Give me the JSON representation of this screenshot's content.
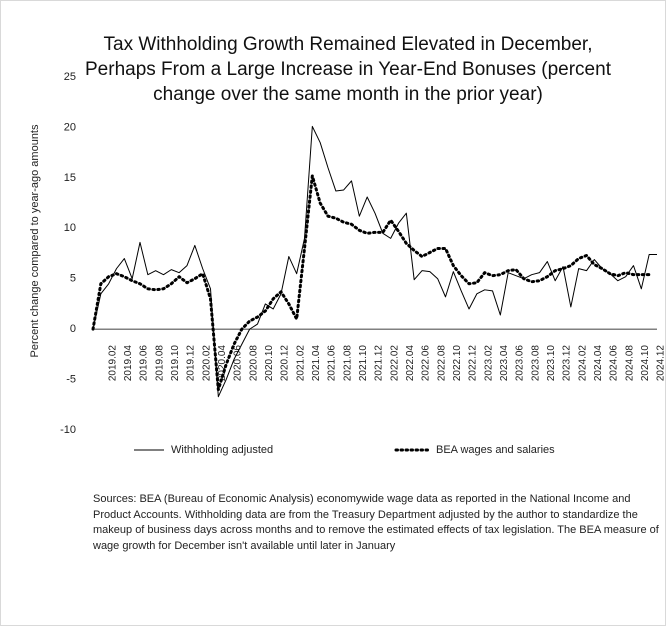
{
  "chart_data": {
    "type": "line",
    "title": [
      "Tax Withholding Growth Remained Elevated in December,",
      "Perhaps From a Large Increase in Year-End  Bonuses (percent",
      "change over the same month in the prior year)"
    ],
    "y_label": "Percent change compared to year-ago amounts",
    "note": "Sources:  BEA (Bureau of Economic Analysis) economywide wage data as reported in the National Income and Product Accounts. Withholding data are from the Treasury Department adjusted by the author to standardize the makeup of business days across months and to remove the estimated effects of tax legislation. The BEA measure of wage growth for December isn't available until later in January",
    "categories": [
      null,
      null,
      "2019.02",
      null,
      "2019.04",
      null,
      "2019.06",
      null,
      "2019.08",
      null,
      "2019.10",
      null,
      "2019.12",
      null,
      "2020.02",
      null,
      "2020.04",
      null,
      "2020.06",
      null,
      "2020.08",
      null,
      "2020.10",
      null,
      "2020.12",
      null,
      "2021.02",
      null,
      "2021.04",
      null,
      "2021.06",
      null,
      "2021.08",
      null,
      "2021.10",
      null,
      "2021.12",
      null,
      "2022.02",
      null,
      "2022.04",
      null,
      "2022.06",
      null,
      "2022.08",
      null,
      "2022.10",
      null,
      "2022.12",
      null,
      "2023.02",
      null,
      "2023.04",
      null,
      "2023.06",
      null,
      "2023.08",
      null,
      "2023.10",
      null,
      "2023.12",
      null,
      "2024.02",
      null,
      "2024.04",
      null,
      "2024.06",
      null,
      "2024.08",
      null,
      "2024.10",
      null,
      "2024.12"
    ],
    "series": [
      {
        "name": "Withholding adjusted",
        "color": "#000000",
        "style": "solid",
        "values": [
          0,
          3.5,
          4.5,
          6,
          7,
          5,
          8.6,
          5.4,
          5.8,
          5.4,
          5.9,
          5.6,
          6.3,
          8.3,
          6,
          4,
          -6.7,
          -5,
          -3,
          -1.5,
          0,
          0.5,
          2.5,
          2,
          3.5,
          7.2,
          5.5,
          9,
          20.1,
          18.5,
          16,
          13.7,
          13.8,
          14.7,
          11.2,
          13.1,
          11.5,
          9.5,
          9,
          10.5,
          11.5,
          4.9,
          5.8,
          5.7,
          5,
          3.2,
          5.7,
          3.8,
          2,
          3.5,
          3.9,
          3.8,
          1.4,
          5.6,
          5.3,
          5,
          5.4,
          5.6,
          6.7,
          4.8,
          6.2,
          2.2,
          6,
          5.8,
          6.9,
          6,
          5.5,
          4.8,
          5.2,
          6.3,
          4,
          7.4,
          7.4
        ]
      },
      {
        "name": "BEA wages and salaries",
        "color": "#000000",
        "style": "dotted",
        "values": [
          0,
          4.5,
          5.2,
          5.5,
          5.2,
          4.8,
          4.5,
          4,
          3.9,
          4,
          4.5,
          5.2,
          4.6,
          5,
          5.5,
          3,
          -6,
          -3.5,
          -1.5,
          0,
          0.8,
          1.2,
          1.8,
          3,
          3.7,
          2.5,
          1,
          8,
          15.2,
          12.5,
          11.2,
          11,
          10.6,
          10.4,
          9.8,
          9.5,
          9.6,
          9.6,
          10.8,
          9.7,
          8.5,
          7.8,
          7.2,
          7.6,
          8,
          8,
          6.3,
          5.3,
          4.5,
          4.6,
          5.6,
          5.3,
          5.4,
          5.8,
          5.9,
          5,
          4.7,
          4.8,
          5.2,
          5.8,
          6,
          6.3,
          7,
          7.3,
          6.4,
          6,
          5.5,
          5.3,
          5.6,
          5.4,
          5.4,
          5.4,
          null
        ]
      }
    ],
    "ylim": [
      -10,
      25
    ],
    "yticks": [
      -10,
      -5,
      0,
      5,
      10,
      15,
      20,
      25
    ],
    "grid": false,
    "legend": "bottom"
  }
}
